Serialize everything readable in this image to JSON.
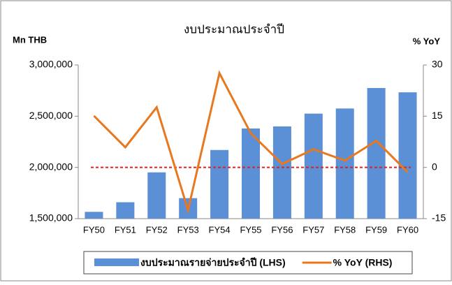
{
  "chart_data": {
    "type": "bar_line",
    "title": "งบประมาณประจำปี",
    "y_label": "Mn THB",
    "y2_label": "% YoY",
    "categories": [
      "FY50",
      "FY51",
      "FY52",
      "FY53",
      "FY54",
      "FY55",
      "FY56",
      "FY57",
      "FY58",
      "FY59",
      "FY60"
    ],
    "series": [
      {
        "name": "งบประมาณรายจ่ายประจำปี (LHS)",
        "type": "bar",
        "color": "#5b8fd6",
        "values": [
          1566200,
          1660000,
          1951700,
          1700000,
          2169968,
          2380000,
          2400000,
          2525000,
          2575000,
          2775000,
          2733000
        ]
      },
      {
        "name": "% YoY (RHS)",
        "type": "line",
        "axis": "y2",
        "color": "#e8781e",
        "values": [
          15.1,
          5.9,
          17.6,
          -12.5,
          27.6,
          10.0,
          1.0,
          5.3,
          2.0,
          7.8,
          -1.4
        ]
      }
    ],
    "ylim": [
      1500000,
      3000000
    ],
    "yticks": [
      {
        "value": 1500000,
        "label": "1,500,000"
      },
      {
        "value": 2000000,
        "label": "2,000,000"
      },
      {
        "value": 2500000,
        "label": "2,500,000"
      },
      {
        "value": 3000000,
        "label": "3,000,000"
      }
    ],
    "y2lim": [
      -15,
      30
    ],
    "y2ticks": [
      -15,
      0,
      15,
      30
    ],
    "reference_line": {
      "value": 0,
      "axis": "y2",
      "color": "#e02020"
    },
    "legend": "bottom"
  }
}
